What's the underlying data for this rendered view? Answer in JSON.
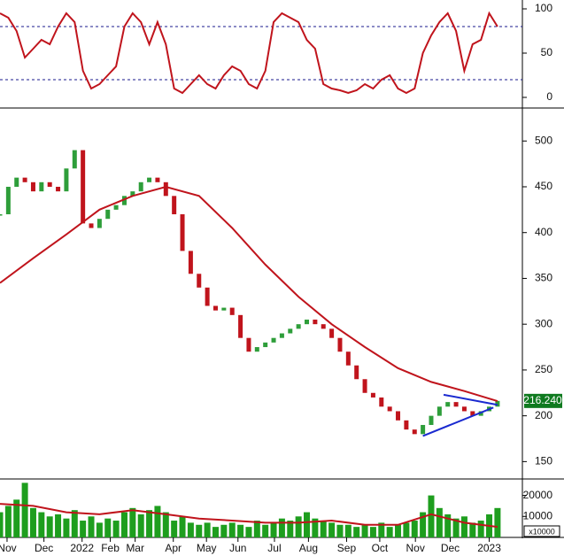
{
  "chart_data": [
    {
      "type": "oscillator",
      "x": [
        0,
        1,
        2,
        3,
        4,
        5,
        6,
        7,
        8,
        9,
        10,
        11,
        12,
        13,
        14,
        15,
        16,
        17,
        18,
        19,
        20,
        21,
        22,
        23,
        24,
        25,
        26,
        27,
        28,
        29,
        30,
        31,
        32,
        33,
        34,
        35,
        36,
        37,
        38,
        39,
        40,
        41,
        42,
        43,
        44,
        45,
        46,
        47,
        48,
        49,
        50,
        51,
        52,
        53,
        54,
        55,
        56,
        57,
        58,
        59,
        60
      ],
      "series": [
        {
          "color": "#c0141c",
          "values": [
            95,
            90,
            75,
            45,
            55,
            65,
            60,
            80,
            95,
            85,
            30,
            10,
            15,
            25,
            35,
            80,
            95,
            85,
            60,
            85,
            60,
            10,
            5,
            15,
            25,
            15,
            10,
            25,
            35,
            30,
            15,
            10,
            30,
            85,
            95,
            90,
            85,
            65,
            55,
            15,
            10,
            8,
            5,
            8,
            15,
            10,
            20,
            25,
            10,
            5,
            10,
            50,
            70,
            85,
            95,
            75,
            30,
            60,
            65,
            95,
            80
          ]
        }
      ],
      "ref_lines": [
        80,
        20
      ],
      "ref_color": "#1a1a8c",
      "xlim": [
        0,
        63
      ],
      "ylim": [
        -8,
        104
      ],
      "yticks": [
        0,
        50,
        100
      ]
    },
    {
      "type": "price",
      "x": [
        0,
        1,
        2,
        3,
        4,
        5,
        6,
        7,
        8,
        9,
        10,
        11,
        12,
        13,
        14,
        15,
        16,
        17,
        18,
        19,
        20,
        21,
        22,
        23,
        24,
        25,
        26,
        27,
        28,
        29,
        30,
        31,
        32,
        33,
        34,
        35,
        36,
        37,
        38,
        39,
        40,
        41,
        42,
        43,
        44,
        45,
        46,
        47,
        48,
        49,
        50,
        51,
        52,
        53,
        54,
        55,
        56,
        57,
        58,
        59,
        60
      ],
      "close": [
        420,
        450,
        460,
        455,
        445,
        455,
        450,
        445,
        470,
        490,
        410,
        405,
        415,
        425,
        430,
        440,
        445,
        455,
        460,
        455,
        440,
        420,
        380,
        355,
        340,
        320,
        315,
        318,
        310,
        285,
        270,
        275,
        280,
        285,
        290,
        295,
        300,
        305,
        300,
        295,
        285,
        270,
        255,
        240,
        225,
        220,
        210,
        205,
        195,
        185,
        180,
        190,
        200,
        210,
        215,
        210,
        205,
        200,
        205,
        210,
        216.24
      ],
      "up_color": "#2e9e3a",
      "down_color": "#c0141c",
      "ma_x": [
        0,
        4,
        8,
        12,
        16,
        20,
        24,
        28,
        32,
        36,
        40,
        44,
        48,
        52,
        56,
        60
      ],
      "ma": [
        345,
        372,
        398,
        425,
        440,
        450,
        440,
        405,
        365,
        330,
        300,
        275,
        252,
        237,
        227,
        216
      ],
      "ma_color": "#c0141c",
      "trendlines": [
        {
          "x": [
            53.5,
            60
          ],
          "y": [
            223,
            212
          ]
        },
        {
          "x": [
            51,
            59.5
          ],
          "y": [
            178,
            209
          ]
        }
      ],
      "trend_color": "#1a2ad0",
      "last": {
        "value": 216.24,
        "label": "216.240"
      },
      "last_color": "#0f7a1f",
      "xlim": [
        0,
        63
      ],
      "ylim": [
        132,
        536
      ],
      "yticks": [
        150,
        200,
        250,
        300,
        350,
        400,
        450,
        500
      ]
    },
    {
      "type": "volume",
      "x": [
        0,
        1,
        2,
        3,
        4,
        5,
        6,
        7,
        8,
        9,
        10,
        11,
        12,
        13,
        14,
        15,
        16,
        17,
        18,
        19,
        20,
        21,
        22,
        23,
        24,
        25,
        26,
        27,
        28,
        29,
        30,
        31,
        32,
        33,
        34,
        35,
        36,
        37,
        38,
        39,
        40,
        41,
        42,
        43,
        44,
        45,
        46,
        47,
        48,
        49,
        50,
        51,
        52,
        53,
        54,
        55,
        56,
        57,
        58,
        59,
        60
      ],
      "values": [
        12000,
        15000,
        18000,
        26000,
        14000,
        12000,
        10000,
        11000,
        9000,
        13000,
        8000,
        10000,
        7000,
        9000,
        8000,
        12000,
        14000,
        11000,
        13000,
        15000,
        12000,
        8000,
        10000,
        7000,
        6000,
        7000,
        5000,
        6000,
        7000,
        6000,
        5000,
        8000,
        6000,
        7000,
        9000,
        8000,
        10000,
        12000,
        9000,
        8000,
        7000,
        6000,
        6000,
        5000,
        6000,
        5000,
        7000,
        5000,
        6000,
        7000,
        8000,
        12000,
        20000,
        14000,
        11000,
        9000,
        10000,
        7000,
        8000,
        11000,
        14000
      ],
      "color": "#1e9e1e",
      "ma_x": [
        0,
        4,
        8,
        12,
        16,
        20,
        24,
        28,
        32,
        36,
        40,
        44,
        48,
        52,
        56,
        60
      ],
      "ma": [
        16000,
        15000,
        12000,
        11000,
        13000,
        11000,
        9000,
        8000,
        7000,
        7000,
        8000,
        6000,
        6000,
        11000,
        7000,
        5000
      ],
      "ma_color": "#c0141c",
      "unit": "x10000",
      "xlim": [
        0,
        63
      ],
      "ylim": [
        0,
        27000
      ],
      "yticks": [
        10000,
        20000
      ],
      "xticks": [
        {
          "value": 0.85,
          "label": "Nov"
        },
        {
          "value": 5.3,
          "label": "Dec"
        },
        {
          "value": 9.9,
          "label": "2022"
        },
        {
          "value": 13.3,
          "label": "Feb"
        },
        {
          "value": 16.3,
          "label": "Mar"
        },
        {
          "value": 20.9,
          "label": "Apr"
        },
        {
          "value": 24.9,
          "label": "May"
        },
        {
          "value": 28.7,
          "label": "Jun"
        },
        {
          "value": 33.1,
          "label": "Jul"
        },
        {
          "value": 37.2,
          "label": "Aug"
        },
        {
          "value": 41.8,
          "label": "Sep"
        },
        {
          "value": 45.8,
          "label": "Oct"
        },
        {
          "value": 50.1,
          "label": "Nov"
        },
        {
          "value": 54.3,
          "label": "Dec"
        },
        {
          "value": 59.0,
          "label": "2023"
        }
      ]
    }
  ]
}
